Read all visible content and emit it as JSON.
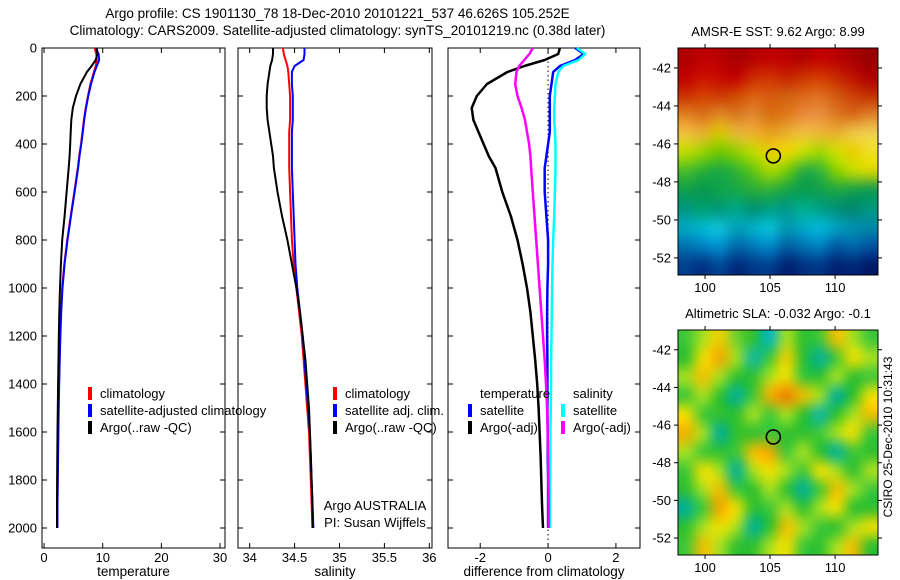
{
  "figure": {
    "title_line1": "Argo profile: CS 1901130_78 18-Dec-2010 20101221_537 46.626S 105.252E",
    "title_line2": "Climatology: CARS2009. Satellite-adjusted climatology: synTS_20101219.nc (0.38d later)",
    "annotation_line1": "Argo AUSTRALIA",
    "annotation_line2": "PI: Susan Wijffels",
    "watermark": "CSIRO 25-Dec-2010 10:31:43"
  },
  "chart_data": [
    {
      "type": "line",
      "name": "temperature-profile",
      "xlabel": "temperature",
      "xlim": [
        -0.35,
        30.85
      ],
      "xticks": [
        0,
        10,
        20,
        30
      ],
      "yticks": [
        0,
        200,
        400,
        600,
        800,
        1000,
        1200,
        1400,
        1600,
        1800,
        2000
      ],
      "depth_axis_down": true,
      "depths": [
        0,
        25,
        50,
        75,
        100,
        150,
        200,
        250,
        300,
        350,
        400,
        450,
        500,
        600,
        700,
        800,
        900,
        1000,
        1100,
        1200,
        1300,
        1400,
        1500,
        1600,
        1700,
        1800,
        1900,
        2000
      ],
      "series": [
        {
          "name": "climatology",
          "color": "#ff0000",
          "values": [
            8.6,
            8.9,
            9.0,
            8.8,
            8.5,
            7.9,
            7.5,
            7.1,
            6.8,
            6.55,
            6.3,
            6.0,
            5.75,
            5.15,
            4.55,
            3.95,
            3.45,
            3.1,
            2.9,
            2.75,
            2.65,
            2.55,
            2.48,
            2.42,
            2.37,
            2.32,
            2.28,
            2.25
          ]
        },
        {
          "name": "satellite-adjusted climatology",
          "color": "#0000ff",
          "values": [
            8.8,
            9.3,
            9.4,
            9.0,
            8.6,
            8.0,
            7.55,
            7.15,
            6.85,
            6.6,
            6.35,
            6.05,
            5.8,
            5.2,
            4.6,
            4.0,
            3.5,
            3.15,
            2.93,
            2.78,
            2.67,
            2.58,
            2.5,
            2.44,
            2.39,
            2.34,
            2.3,
            2.27
          ]
        },
        {
          "name": "Argo(..raw -QC)",
          "color": "#000000",
          "values": [
            9.0,
            9.1,
            8.8,
            8.1,
            7.3,
            6.2,
            5.45,
            4.9,
            4.65,
            4.55,
            4.45,
            4.35,
            4.2,
            3.85,
            3.5,
            3.1,
            2.88,
            2.72,
            2.6,
            2.52,
            2.46,
            2.4,
            2.35,
            2.3,
            2.26,
            2.23,
            2.21,
            2.2
          ]
        }
      ],
      "legend": [
        {
          "label": "climatology",
          "color": "#ff0000"
        },
        {
          "label": "satellite-adjusted climatology",
          "color": "#0000ff"
        },
        {
          "label": "Argo(..raw -QC)",
          "color": "#000000"
        }
      ]
    },
    {
      "type": "line",
      "name": "salinity-profile",
      "xlabel": "salinity",
      "xlim": [
        33.87,
        36.03
      ],
      "xticks": [
        34,
        34.5,
        35,
        35.5,
        36
      ],
      "yticks": [
        0,
        200,
        400,
        600,
        800,
        1000,
        1200,
        1400,
        1600,
        1800,
        2000
      ],
      "depth_axis_down": true,
      "depths": [
        0,
        25,
        50,
        75,
        100,
        150,
        200,
        250,
        300,
        350,
        400,
        450,
        500,
        600,
        700,
        800,
        900,
        1000,
        1100,
        1200,
        1300,
        1400,
        1500,
        1600,
        1700,
        1800,
        1900,
        2000
      ],
      "series": [
        {
          "name": "climatology",
          "color": "#ff0000",
          "values": [
            34.37,
            34.38,
            34.4,
            34.42,
            34.43,
            34.44,
            34.45,
            34.45,
            34.45,
            34.44,
            34.44,
            34.44,
            34.44,
            34.45,
            34.46,
            34.47,
            34.49,
            34.52,
            34.55,
            34.58,
            34.6,
            34.62,
            34.64,
            34.66,
            34.67,
            34.68,
            34.69,
            34.7
          ]
        },
        {
          "name": "satellite adj. clim.",
          "color": "#0000ff",
          "values": [
            34.61,
            34.61,
            34.6,
            34.5,
            34.47,
            34.47,
            34.48,
            34.48,
            34.48,
            34.47,
            34.47,
            34.47,
            34.47,
            34.48,
            34.49,
            34.5,
            34.51,
            34.53,
            34.56,
            34.59,
            34.61,
            34.63,
            34.65,
            34.67,
            34.68,
            34.69,
            34.7,
            34.71
          ]
        },
        {
          "name": "Argo(..raw -QC)",
          "color": "#000000",
          "values": [
            34.26,
            34.26,
            34.25,
            34.23,
            34.22,
            34.2,
            34.19,
            34.19,
            34.2,
            34.22,
            34.24,
            34.26,
            34.27,
            34.31,
            34.36,
            34.42,
            34.47,
            34.52,
            34.56,
            34.59,
            34.62,
            34.64,
            34.66,
            34.67,
            34.68,
            34.69,
            34.7,
            34.7
          ]
        }
      ],
      "legend": [
        {
          "label": "climatology",
          "color": "#ff0000"
        },
        {
          "label": "satellite adj. clim.",
          "color": "#0000ff"
        },
        {
          "label": "Argo(..raw -QC)",
          "color": "#000000"
        }
      ]
    },
    {
      "type": "line",
      "name": "difference-profile",
      "xlabel": "difference from climatology",
      "xlim": [
        -2.95,
        2.71
      ],
      "xticks": [
        -2,
        0,
        2
      ],
      "yticks": [
        0,
        200,
        400,
        600,
        800,
        1000,
        1200,
        1400,
        1600,
        1800,
        2000
      ],
      "zero_line": true,
      "depth_axis_down": true,
      "depths": [
        0,
        25,
        50,
        75,
        100,
        150,
        200,
        250,
        300,
        350,
        400,
        450,
        500,
        600,
        700,
        800,
        900,
        1000,
        1100,
        1200,
        1300,
        1400,
        1500,
        1600,
        1700,
        1800,
        1900,
        2000
      ],
      "series": [
        {
          "name": "temperature satellite",
          "color": "#0000ff",
          "values": [
            0.8,
            1.05,
            0.8,
            0.35,
            0.15,
            0.1,
            0.05,
            0.05,
            0.05,
            0.05,
            0.0,
            -0.05,
            -0.1,
            -0.1,
            -0.05,
            0.0,
            0.0,
            -0.02,
            -0.03,
            -0.03,
            -0.02,
            -0.02,
            -0.02,
            -0.01,
            -0.01,
            0.0,
            0.0,
            0.0
          ]
        },
        {
          "name": "temperature Argo(-adj)",
          "color": "#000000",
          "values": [
            0.35,
            0.3,
            -0.1,
            -0.7,
            -1.2,
            -1.8,
            -2.1,
            -2.25,
            -2.2,
            -2.05,
            -1.9,
            -1.75,
            -1.55,
            -1.35,
            -1.1,
            -0.9,
            -0.75,
            -0.62,
            -0.52,
            -0.45,
            -0.38,
            -0.32,
            -0.28,
            -0.25,
            -0.22,
            -0.2,
            -0.18,
            -0.15
          ]
        },
        {
          "name": "salinity satellite",
          "color": "#00ffff",
          "values": [
            0.85,
            1.1,
            0.9,
            0.45,
            0.3,
            0.22,
            0.2,
            0.18,
            0.18,
            0.2,
            0.22,
            0.22,
            0.22,
            0.2,
            0.18,
            0.15,
            0.13,
            0.12,
            0.11,
            0.1,
            0.09,
            0.09,
            0.08,
            0.07,
            0.07,
            0.06,
            0.05,
            0.05
          ]
        },
        {
          "name": "salinity Argo(-adj)",
          "color": "#ff00ff",
          "values": [
            -0.45,
            -0.55,
            -0.7,
            -0.85,
            -0.93,
            -0.97,
            -0.9,
            -0.78,
            -0.68,
            -0.62,
            -0.56,
            -0.52,
            -0.5,
            -0.45,
            -0.4,
            -0.35,
            -0.3,
            -0.25,
            -0.2,
            -0.15,
            -0.1,
            -0.06,
            -0.03,
            -0.01,
            0.0,
            0.01,
            0.02,
            0.02
          ]
        }
      ],
      "legend_columns": [
        {
          "header": "temperature",
          "items": [
            {
              "label": "satellite",
              "color": "#0000ff"
            },
            {
              "label": "Argo(-adj)",
              "color": "#000000"
            }
          ]
        },
        {
          "header": "salinity",
          "items": [
            {
              "label": "satellite",
              "color": "#00ffff"
            },
            {
              "label": "Argo(-adj)",
              "color": "#ff00ff"
            }
          ]
        }
      ]
    },
    {
      "type": "heatmap",
      "name": "amsre-sst-map",
      "title": "AMSR-E SST: 9.62 Argo: 8.99",
      "xticks": [
        100,
        105,
        110
      ],
      "yticks": [
        -42,
        -44,
        -46,
        -48,
        -50,
        -52
      ],
      "lon_range": [
        97.92,
        113.3
      ],
      "lat_range": [
        -40.95,
        -52.9
      ],
      "marker": {
        "lon": 105.25,
        "lat": -46.63
      },
      "grid": [
        [
          "#b00000",
          "#c00000",
          "#b80000",
          "#a80000",
          "#b40000",
          "#c00000",
          "#bc0000",
          "#b00000",
          "#c40000",
          "#b80000",
          "#a80000",
          "#980000"
        ],
        [
          "#c00000",
          "#cc1000",
          "#c80800",
          "#c00000",
          "#cc2800",
          "#d03000",
          "#c82000",
          "#cc3000",
          "#d43800",
          "#c82800",
          "#bc1000",
          "#ac0000"
        ],
        [
          "#cc3000",
          "#d44000",
          "#cc3800",
          "#d04800",
          "#dc6010",
          "#d85810",
          "#d06010",
          "#dc6818",
          "#e07020",
          "#d45810",
          "#cc4008",
          "#c03000"
        ],
        [
          "#e08020",
          "#d87018",
          "#e08828",
          "#d87820",
          "#e08830",
          "#d87010",
          "#e07818",
          "#e88838",
          "#e89040",
          "#dc7820",
          "#d86818",
          "#e08028"
        ],
        [
          "#f0c040",
          "#e8b030",
          "#d8c800",
          "#e8b838",
          "#f0b030",
          "#e8a020",
          "#e8b030",
          "#f0c040",
          "#f0b838",
          "#e8b030",
          "#f0c848",
          "#f0d050"
        ],
        [
          "#c0dc00",
          "#98d400",
          "#70c800",
          "#90d000",
          "#c0dc00",
          "#e8d000",
          "#f0d800",
          "#c8e000",
          "#a0d800",
          "#d0e000",
          "#e8d000",
          "#f0e020"
        ],
        [
          "#48bc28",
          "#28b038",
          "#18a844",
          "#30b434",
          "#60c414",
          "#a8d800",
          "#78cc08",
          "#28ac40",
          "#30b43c",
          "#88d000",
          "#c0dc00",
          "#d8d800"
        ],
        [
          "#10a04c",
          "#08984f",
          "#10a44c",
          "#18a848",
          "#28ac3c",
          "#30b038",
          "#18a448",
          "#089c50",
          "#10a04c",
          "#20a844",
          "#18a048",
          "#109c50"
        ],
        [
          "#009680",
          "#00a070",
          "#009878",
          "#00a888",
          "#009070",
          "#00a080",
          "#009888",
          "#00b090",
          "#00a088",
          "#009078",
          "#008870",
          "#009880"
        ],
        [
          "#00a8c0",
          "#00b8d0",
          "#10c0d8",
          "#00a0b8",
          "#00b0c8",
          "#08c0d8",
          "#0098b0",
          "#00a8c8",
          "#00b8d8",
          "#00a0c0",
          "#0090b0",
          "#0088a8"
        ],
        [
          "#0070b0",
          "#0080c0",
          "#0090d0",
          "#0068a8",
          "#0078b8",
          "#0088c8",
          "#0060a0",
          "#0070b0",
          "#0080c0",
          "#0058a0",
          "#0068a8",
          "#0050a0"
        ],
        [
          "#004090",
          "#003080",
          "#004898",
          "#002878",
          "#003888",
          "#004090",
          "#002070",
          "#003080",
          "#003888",
          "#002070",
          "#002878",
          "#001868"
        ]
      ]
    },
    {
      "type": "heatmap",
      "name": "altimetric-sla-map",
      "title": "Altimetric SLA: -0.032 Argo: -0.1",
      "xticks": [
        100,
        105,
        110
      ],
      "yticks": [
        -42,
        -44,
        -46,
        -48,
        -50,
        -52
      ],
      "lon_range": [
        97.92,
        113.3
      ],
      "lat_range": [
        -40.95,
        -52.9
      ],
      "marker": {
        "lon": 105.25,
        "lat": -46.63
      },
      "grid": [
        [
          "#40c838",
          "#a8e020",
          "#f0d000",
          "#70d030",
          "#30c030",
          "#00b8c0",
          "#a8e020",
          "#30c030",
          "#40c838",
          "#f0c000",
          "#a8e020",
          "#40c838"
        ],
        [
          "#30c030",
          "#f0e000",
          "#f0a800",
          "#a8e020",
          "#10b8a8",
          "#40c838",
          "#f0d000",
          "#30c030",
          "#00b09a",
          "#40c838",
          "#f0e000",
          "#a8e020"
        ],
        [
          "#a8e020",
          "#f0c000",
          "#a8e020",
          "#30c030",
          "#30c030",
          "#a8e020",
          "#f0e000",
          "#40c838",
          "#30c030",
          "#a8e020",
          "#30c030",
          "#40c838"
        ],
        [
          "#40c838",
          "#a8e020",
          "#30c030",
          "#00b09a",
          "#40c838",
          "#f0b000",
          "#f08000",
          "#f0c000",
          "#a8e020",
          "#00b09a",
          "#30c030",
          "#f0e000"
        ],
        [
          "#f0e000",
          "#40c838",
          "#30c030",
          "#30c030",
          "#a8e020",
          "#40c838",
          "#a8e020",
          "#30c030",
          "#10b8a8",
          "#30c030",
          "#a8e020",
          "#f0c000"
        ],
        [
          "#f0b000",
          "#a8e020",
          "#00b09a",
          "#30c030",
          "#30c030",
          "#40c838",
          "#30c030",
          "#30c030",
          "#40c838",
          "#a8e020",
          "#f0e000",
          "#40c838"
        ],
        [
          "#a8e020",
          "#40c838",
          "#30c030",
          "#40c838",
          "#f0c000",
          "#f0a800",
          "#40c838",
          "#a8e020",
          "#30c030",
          "#00b09a",
          "#40c838",
          "#30c030"
        ],
        [
          "#40c838",
          "#f0e000",
          "#a8e020",
          "#00b09a",
          "#a8e020",
          "#f0e000",
          "#a8e020",
          "#40c838",
          "#f0e000",
          "#a8e020",
          "#30c030",
          "#a8e020"
        ],
        [
          "#30c030",
          "#a8e020",
          "#f0c000",
          "#40c838",
          "#30c030",
          "#a8e020",
          "#30c030",
          "#00b09a",
          "#40c838",
          "#f0c000",
          "#a8e020",
          "#40c838"
        ],
        [
          "#00b09a",
          "#40c838",
          "#f0a800",
          "#f0e000",
          "#30c030",
          "#40c838",
          "#a8e020",
          "#30c030",
          "#a8e020",
          "#f0e000",
          "#30c030",
          "#30c030"
        ],
        [
          "#30c030",
          "#a8e020",
          "#f0e000",
          "#a8e020",
          "#00b09a",
          "#30c030",
          "#f0c000",
          "#a8e020",
          "#40c838",
          "#30c030",
          "#a8e020",
          "#f0e000"
        ],
        [
          "#40c838",
          "#f0c000",
          "#a8e020",
          "#30c030",
          "#30c030",
          "#a8e020",
          "#f0e000",
          "#40c838",
          "#30c030",
          "#a8e020",
          "#f0c000",
          "#30c030"
        ]
      ]
    }
  ]
}
